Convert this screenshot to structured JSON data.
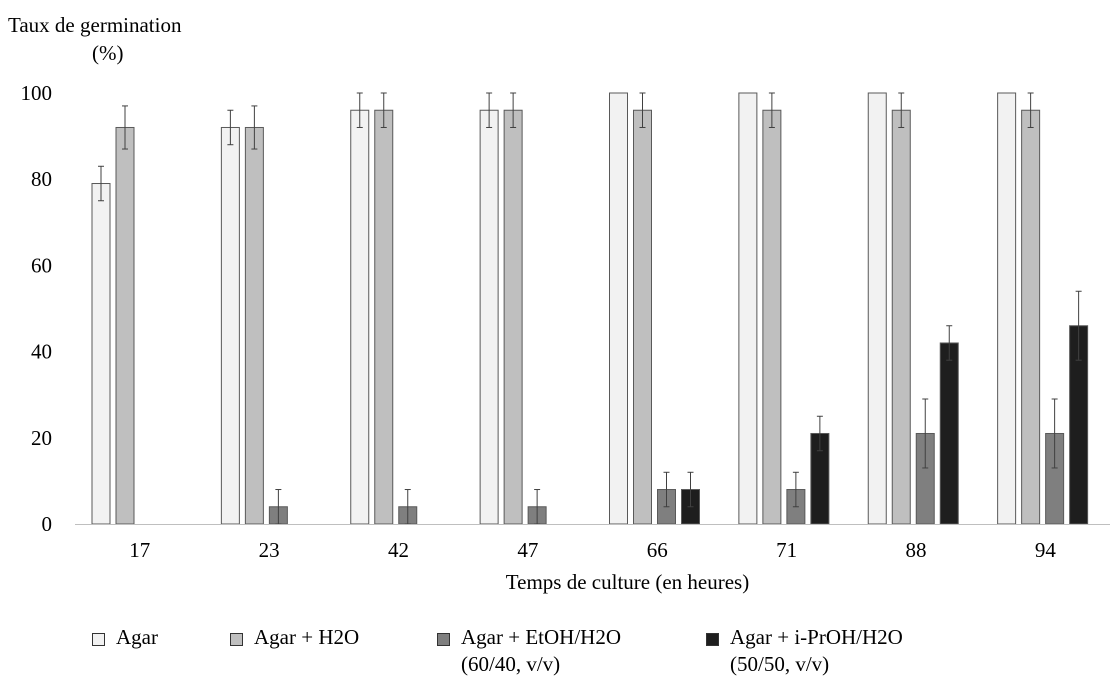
{
  "chart_data": {
    "type": "bar",
    "ylabel_line1": "Taux de germination",
    "ylabel_line2": "(%)",
    "xlabel": "Temps de culture (en heures)",
    "ylim": [
      0,
      100
    ],
    "yticks": [
      "0",
      "20",
      "40",
      "60",
      "80",
      "100"
    ],
    "categories": [
      "17",
      "23",
      "42",
      "47",
      "66",
      "71",
      "88",
      "94"
    ],
    "series": [
      {
        "name": "Agar",
        "color": "#f2f2f2",
        "values": [
          79,
          92,
          96,
          96,
          100,
          100,
          100,
          100
        ],
        "errors": [
          4,
          4,
          4,
          4,
          0,
          0,
          0,
          0
        ]
      },
      {
        "name": "Agar + H2O",
        "color": "#bfbfbf",
        "values": [
          92,
          92,
          96,
          96,
          96,
          96,
          96,
          96
        ],
        "errors": [
          5,
          5,
          4,
          4,
          4,
          4,
          4,
          4
        ]
      },
      {
        "name": "Agar + EtOH/H2O",
        "name_line2": "(60/40, v/v)",
        "color": "#7f7f7f",
        "values": [
          0,
          4,
          4,
          4,
          8,
          8,
          21,
          21
        ],
        "errors": [
          0,
          4,
          4,
          4,
          4,
          4,
          8,
          8
        ]
      },
      {
        "name": "Agar + i-PrOH/H2O",
        "name_line2": "(50/50, v/v)",
        "color": "#1e1e1e",
        "values": [
          0,
          0,
          0,
          0,
          8,
          21,
          42,
          46
        ],
        "errors": [
          0,
          0,
          0,
          0,
          4,
          4,
          4,
          8
        ]
      }
    ],
    "grid": false,
    "legend_position": "bottom"
  }
}
